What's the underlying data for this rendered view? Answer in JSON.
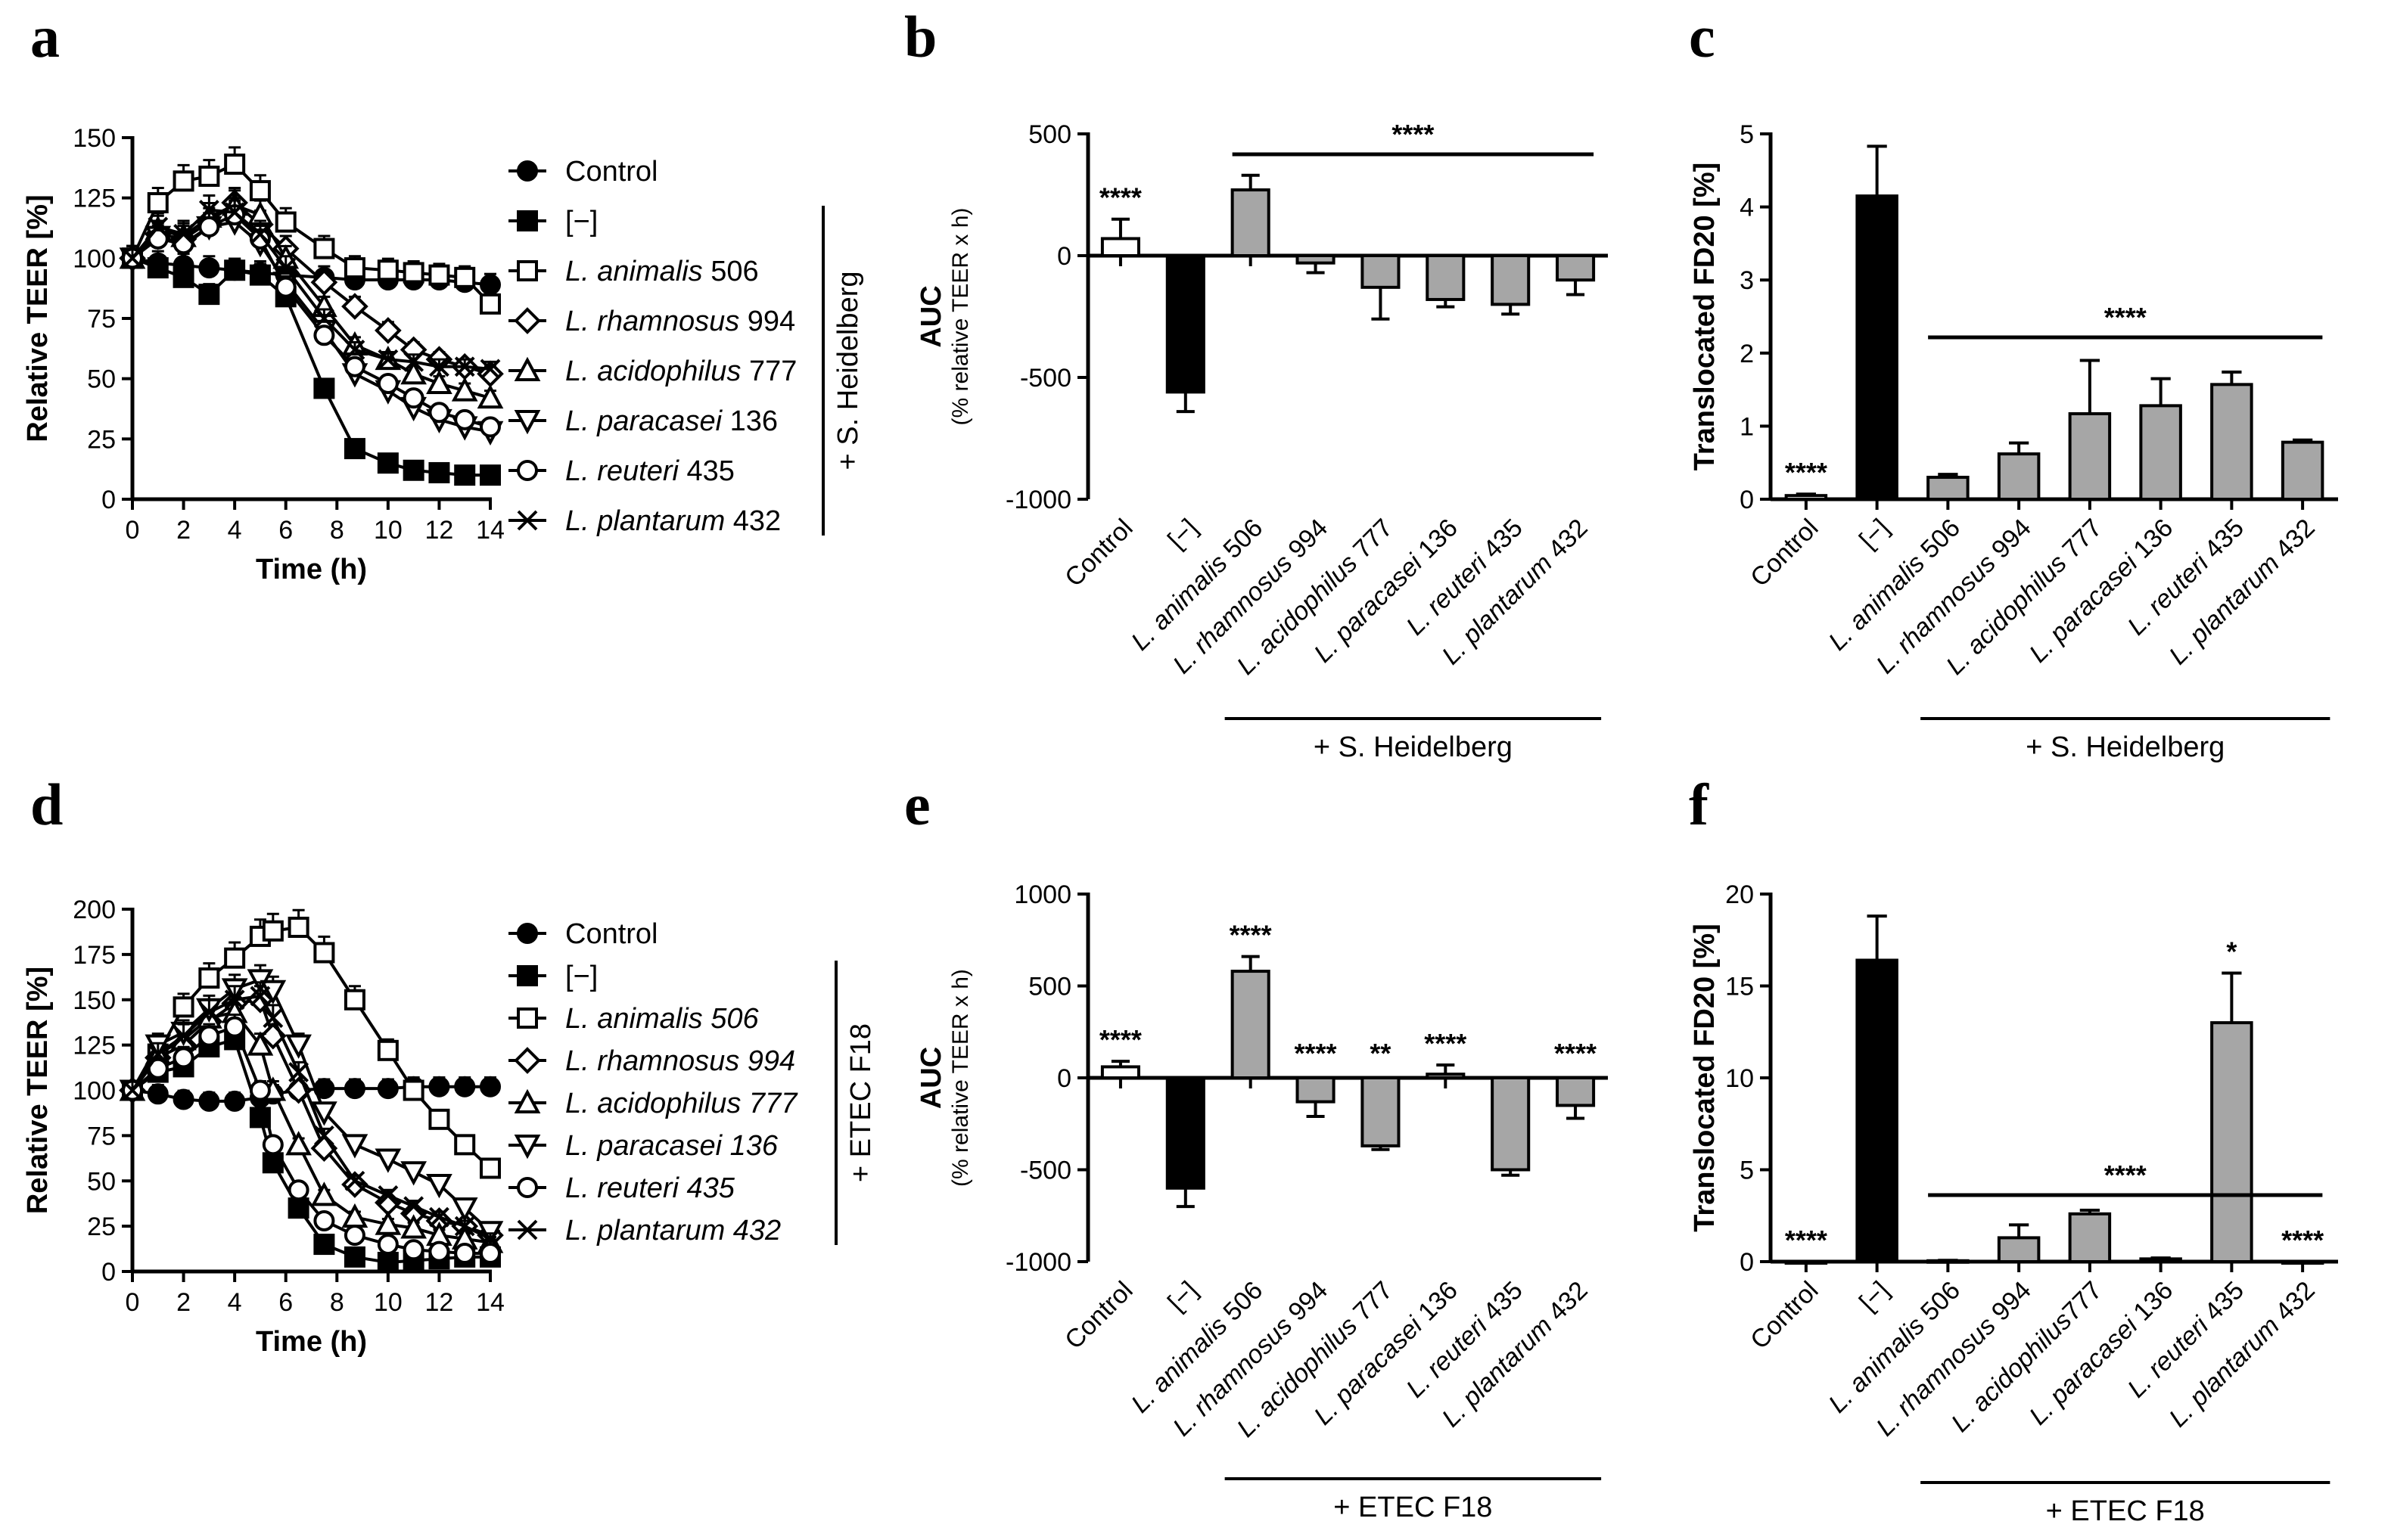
{
  "panels": {
    "a": "a",
    "b": "b",
    "c": "c",
    "d": "d",
    "e": "e",
    "f": "f"
  },
  "chart_data": [
    {
      "id": "a",
      "type": "line",
      "xlabel": "Time (h)",
      "ylabel": "Relative TEER [%]",
      "xlim": [
        0,
        14
      ],
      "ylim": [
        0,
        150
      ],
      "xticks": [
        0,
        2,
        4,
        6,
        8,
        10,
        12,
        14
      ],
      "yticks": [
        0,
        25,
        50,
        75,
        100,
        125,
        150
      ],
      "group_label": "+ S. Heidelberg",
      "x": [
        0,
        1,
        2,
        3,
        4,
        5,
        6,
        7.5,
        8.7,
        10,
        11,
        12,
        13,
        14
      ],
      "series": [
        {
          "name": "Control",
          "italic": "",
          "rest": "Control",
          "marker": "circle-filled",
          "values": [
            100,
            98,
            97,
            96,
            95,
            94,
            93,
            92,
            91,
            91,
            91,
            91,
            90,
            89
          ]
        },
        {
          "name": "[−]",
          "italic": "",
          "rest": "[−]",
          "marker": "square-filled",
          "values": [
            100,
            96,
            92,
            85,
            95,
            93,
            84,
            46,
            21,
            15,
            12,
            11,
            10,
            10
          ]
        },
        {
          "name": "L. animalis 506",
          "italic": "L. animalis",
          "rest": " 506",
          "marker": "square-open",
          "values": [
            100,
            123,
            132,
            134,
            139,
            128,
            115,
            104,
            96,
            95,
            94,
            93,
            92,
            81
          ]
        },
        {
          "name": "L. rhamnosus 994",
          "italic": "L. rhamnosus",
          "rest": " 994",
          "marker": "diamond-open",
          "values": [
            100,
            110,
            108,
            115,
            123,
            114,
            104,
            90,
            80,
            70,
            62,
            58,
            55,
            52
          ]
        },
        {
          "name": "L. acidophilus 777",
          "italic": "L. acidophilus",
          "rest": " 777",
          "marker": "triangle-up-open",
          "values": [
            100,
            112,
            109,
            117,
            122,
            118,
            100,
            80,
            64,
            58,
            52,
            48,
            45,
            42
          ]
        },
        {
          "name": "L. paracasei 136",
          "italic": "L. paracasei",
          "rest": " 136",
          "marker": "triangle-down-open",
          "values": [
            100,
            109,
            105,
            113,
            115,
            106,
            90,
            70,
            52,
            45,
            38,
            33,
            30,
            28
          ]
        },
        {
          "name": "L. reuteri 435",
          "italic": "L. reuteri",
          "rest": " 435",
          "marker": "circle-open",
          "values": [
            100,
            108,
            106,
            113,
            118,
            108,
            88,
            68,
            55,
            48,
            42,
            36,
            33,
            30
          ]
        },
        {
          "name": "L. plantarum 432",
          "italic": "L. plantarum",
          "rest": " 432",
          "marker": "x",
          "values": [
            100,
            113,
            110,
            120,
            119,
            110,
            96,
            75,
            62,
            58,
            57,
            55,
            55,
            54
          ]
        }
      ]
    },
    {
      "id": "b",
      "type": "bar",
      "ylabel": "AUC",
      "ylabel2": "(% relative TEER x h)",
      "ylim": [
        -1000,
        500
      ],
      "yticks": [
        -1000,
        -500,
        0,
        500
      ],
      "categories": [
        "Control",
        "[−]",
        "L. animalis 506",
        "L. rhamnosus 994",
        "L. acidophilus 777",
        "L. paracasei 136",
        "L. reuteri 435",
        "L. plantarum 432"
      ],
      "cat_italic": [
        "",
        "",
        "L. animalis",
        "L. rhamnosus",
        "L. acidophilus",
        "L. paracasei",
        "L. reuteri",
        "L. plantarum"
      ],
      "cat_rest": [
        "Control",
        "[−]",
        " 506",
        " 994",
        " 777",
        " 136",
        " 435",
        " 432"
      ],
      "values": [
        70,
        -560,
        270,
        -30,
        -130,
        -180,
        -200,
        -100
      ],
      "errors": [
        80,
        80,
        60,
        40,
        130,
        30,
        40,
        60
      ],
      "fills": [
        "white",
        "black",
        "gray",
        "gray",
        "gray",
        "gray",
        "gray",
        "gray"
      ],
      "bar_annotations": [
        "****",
        "",
        "",
        "",
        "",
        "",
        "",
        ""
      ],
      "bracket_annotation": "****",
      "group_label": "+ S.  Heidelberg"
    },
    {
      "id": "c",
      "type": "bar",
      "ylabel": "Translocated FD20 [%]",
      "ylim": [
        0,
        5
      ],
      "yticks": [
        0,
        1,
        2,
        3,
        4,
        5
      ],
      "categories": [
        "Control",
        "[−]",
        "L. animalis 506",
        "L. rhamnosus 994",
        "L. acidophilus 777",
        "L. paracasei 136",
        "L. reuteri 435",
        "L. plantarum 432"
      ],
      "cat_italic": [
        "",
        "",
        "L. animalis",
        "L. rhamnosus",
        "L. acidophilus",
        "L. paracasei",
        "L. reuteri",
        "L. plantarum"
      ],
      "cat_rest": [
        "Control",
        "[−]",
        " 506",
        " 994",
        " 777",
        " 136",
        " 435",
        " 432"
      ],
      "values": [
        0.05,
        4.15,
        0.3,
        0.62,
        1.17,
        1.28,
        1.57,
        0.78
      ],
      "errors": [
        0.02,
        0.68,
        0.04,
        0.15,
        0.73,
        0.37,
        0.17,
        0.03
      ],
      "fills": [
        "white",
        "black",
        "gray",
        "gray",
        "gray",
        "gray",
        "gray",
        "gray"
      ],
      "bar_annotations": [
        "****",
        "",
        "",
        "",
        "",
        "",
        "",
        ""
      ],
      "bracket_annotation": "****",
      "group_label": "+ S. Heidelberg"
    },
    {
      "id": "d",
      "type": "line",
      "xlabel": "Time (h)",
      "ylabel": "Relative TEER [%]",
      "xlim": [
        0,
        14
      ],
      "ylim": [
        0,
        200
      ],
      "xticks": [
        0,
        2,
        4,
        6,
        8,
        10,
        12,
        14
      ],
      "yticks": [
        0,
        25,
        50,
        75,
        100,
        125,
        150,
        175,
        200
      ],
      "group_label": "+ ETEC F18",
      "x": [
        0,
        1,
        2,
        3,
        4,
        5,
        5.5,
        6.5,
        7.5,
        8.7,
        10,
        11,
        12,
        13,
        14
      ],
      "series": [
        {
          "name": "Control",
          "italic": "",
          "rest": "Control",
          "marker": "circle-filled",
          "values": [
            100,
            98,
            95,
            94,
            94,
            96,
            98,
            100,
            101,
            101,
            101,
            102,
            102,
            102,
            102
          ]
        },
        {
          "name": "[−]",
          "italic": "",
          "rest": "[−]",
          "marker": "square-filled",
          "values": [
            100,
            110,
            113,
            124,
            128,
            85,
            60,
            35,
            15,
            8,
            5,
            6,
            7,
            8,
            8
          ]
        },
        {
          "name": "L. animalis 506",
          "italic": "L. animalis 506",
          "rest": "",
          "marker": "square-open",
          "values": [
            100,
            120,
            146,
            162,
            173,
            185,
            188,
            190,
            176,
            150,
            122,
            100,
            84,
            70,
            57
          ]
        },
        {
          "name": "L. rhamnosus 994",
          "italic": "L. rhamnosus 994",
          "rest": "",
          "marker": "diamond-open",
          "values": [
            100,
            118,
            125,
            138,
            148,
            150,
            130,
            100,
            68,
            48,
            38,
            32,
            28,
            25,
            20
          ]
        },
        {
          "name": "L. acidophilus 777",
          "italic": "L. acidophilus 777",
          "rest": "",
          "marker": "triangle-up-open",
          "values": [
            100,
            120,
            128,
            140,
            143,
            125,
            100,
            70,
            42,
            30,
            26,
            24,
            20,
            18,
            16
          ]
        },
        {
          "name": "L. paracasei 136",
          "italic": "L. paracasei 136",
          "rest": "",
          "marker": "triangle-down-open",
          "values": [
            100,
            125,
            132,
            145,
            156,
            161,
            155,
            125,
            88,
            70,
            62,
            55,
            48,
            35,
            22
          ]
        },
        {
          "name": "L. reuteri 435",
          "italic": "L. reuteri 435",
          "rest": "",
          "marker": "circle-open",
          "values": [
            100,
            112,
            118,
            130,
            135,
            100,
            70,
            45,
            28,
            20,
            15,
            12,
            11,
            10,
            10
          ]
        },
        {
          "name": "L. plantarum 432",
          "italic": "L. plantarum 432",
          "rest": "",
          "marker": "x",
          "values": [
            100,
            120,
            130,
            143,
            150,
            152,
            140,
            110,
            75,
            50,
            42,
            36,
            30,
            25,
            18
          ]
        }
      ]
    },
    {
      "id": "e",
      "type": "bar",
      "ylabel": "AUC",
      "ylabel2": "(% relative TEER x h)",
      "ylim": [
        -1000,
        1000
      ],
      "yticks": [
        -1000,
        -500,
        0,
        500,
        1000
      ],
      "categories": [
        "Control",
        "[−]",
        "L. animalis 506",
        "L. rhamnosus 994",
        "L. acidophilus 777",
        "L. paracasei 136",
        "L. reuteri 435",
        "L. plantarum 432"
      ],
      "cat_italic": [
        "",
        "",
        "L. animalis",
        "L. rhamnosus",
        "L. acidophilus",
        "L. paracasei",
        "L. reuteri",
        "L. plantarum"
      ],
      "cat_rest": [
        "Control",
        "[−]",
        " 506",
        " 994",
        " 777",
        " 136",
        " 435",
        " 432"
      ],
      "values": [
        60,
        -600,
        580,
        -130,
        -370,
        20,
        -500,
        -150
      ],
      "errors": [
        30,
        100,
        80,
        80,
        20,
        50,
        30,
        70
      ],
      "fills": [
        "white",
        "black",
        "gray",
        "gray",
        "gray",
        "gray",
        "gray",
        "gray"
      ],
      "bar_annotations": [
        "****",
        "",
        "****",
        "****",
        "**",
        "****",
        "",
        "****"
      ],
      "group_label": "+ ETEC F18"
    },
    {
      "id": "f",
      "type": "bar",
      "ylabel": "Translocated FD20 [%]",
      "ylim": [
        0,
        20
      ],
      "yticks": [
        0,
        5,
        10,
        15,
        20
      ],
      "categories": [
        "Control",
        "[−]",
        "L. animalis 506",
        "L. rhamnosus 994",
        "L. acidophilus777",
        "L. paracasei 136",
        "L. reuteri 435",
        "L. plantarum 432"
      ],
      "cat_italic": [
        "",
        "",
        "L. animalis",
        "L. rhamnosus",
        "L. acidophilus",
        "L. paracasei",
        "L. reuteri",
        "L. plantarum"
      ],
      "cat_rest": [
        "Control",
        "[−]",
        " 506",
        " 994",
        "777",
        " 136",
        " 435",
        " 432"
      ],
      "values": [
        0,
        16.4,
        0.05,
        1.3,
        2.6,
        0.15,
        13.0,
        0
      ],
      "errors": [
        0,
        2.4,
        0.02,
        0.7,
        0.2,
        0.05,
        2.7,
        0
      ],
      "fills": [
        "white",
        "black",
        "gray",
        "gray",
        "gray",
        "gray",
        "gray",
        "gray"
      ],
      "bar_annotations": [
        "****",
        "",
        "",
        "",
        "",
        "",
        "*",
        "****"
      ],
      "bracket_annotation": "****",
      "group_label": "+ ETEC  F18"
    }
  ]
}
